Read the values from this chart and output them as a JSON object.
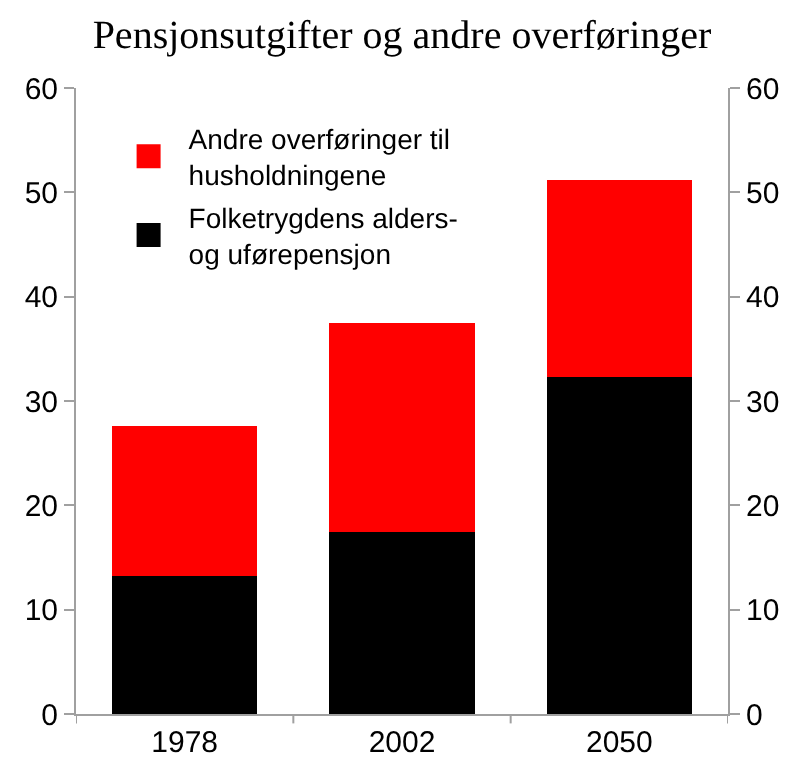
{
  "chart_data": {
    "type": "bar",
    "title": "Pensjonsutgifter og andre overføringer",
    "categories": [
      "1978",
      "2002",
      "2050"
    ],
    "stacked": true,
    "series": [
      {
        "name": "Folketrygdens alders-\nog uførepensjon",
        "color": "#000000",
        "values": [
          13.2,
          17.4,
          32.3
        ]
      },
      {
        "name": "Andre overføringer til\nhusholdningene",
        "color": "#ff0000",
        "values": [
          14.4,
          20.1,
          18.9
        ]
      }
    ],
    "ylim": [
      0,
      60
    ],
    "yticks": [
      0,
      10,
      20,
      30,
      40,
      50,
      60
    ],
    "y2lim": [
      0,
      60
    ],
    "y2ticks": [
      0,
      10,
      20,
      30,
      40,
      50,
      60
    ],
    "legend": "top left"
  }
}
